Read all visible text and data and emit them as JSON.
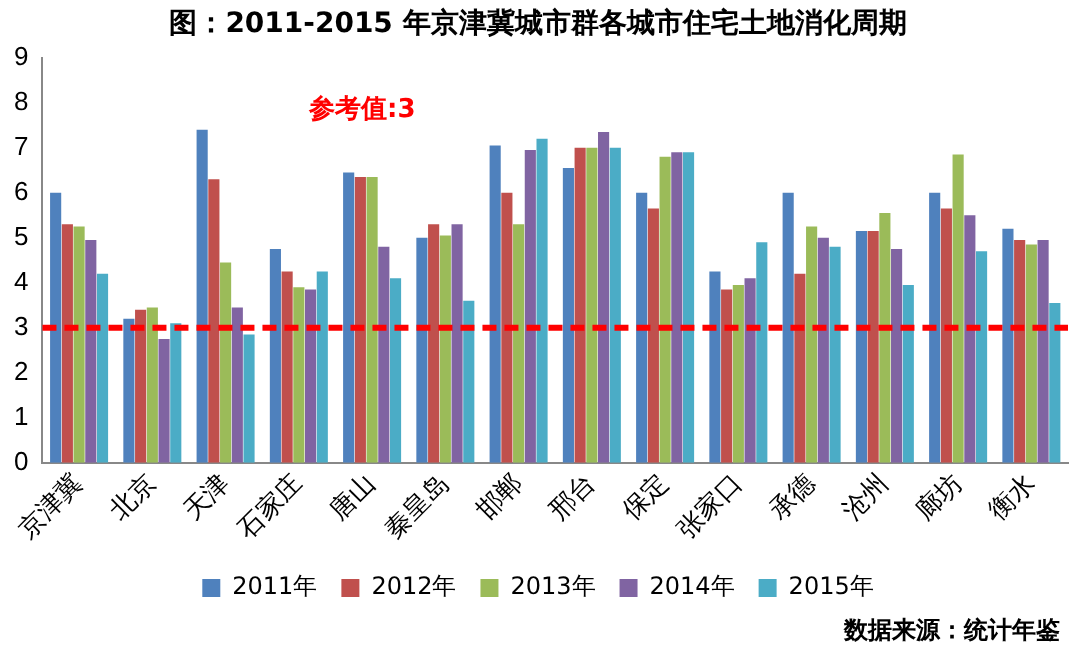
{
  "chart_data": {
    "type": "bar",
    "title": "图：2011-2015 年京津冀城市群各城市住宅土地消化周期",
    "categories": [
      "京津冀",
      "北京",
      "天津",
      "石家庄",
      "唐山",
      "秦皇岛",
      "邯郸",
      "邢台",
      "保定",
      "张家口",
      "承德",
      "沧州",
      "廊坊",
      "衡水"
    ],
    "series": [
      {
        "name": "2011年",
        "color": "#4f81bd",
        "values": [
          6.0,
          3.2,
          7.4,
          4.75,
          6.45,
          5.0,
          7.05,
          6.55,
          6.0,
          4.25,
          6.0,
          5.15,
          6.0,
          5.2
        ]
      },
      {
        "name": "2012年",
        "color": "#c0504d",
        "values": [
          5.3,
          3.4,
          6.3,
          4.25,
          6.35,
          5.3,
          6.0,
          7.0,
          5.65,
          3.85,
          4.2,
          5.15,
          5.65,
          4.95
        ]
      },
      {
        "name": "2013年",
        "color": "#9bbb59",
        "values": [
          5.25,
          3.45,
          4.45,
          3.9,
          6.35,
          5.05,
          5.3,
          7.0,
          6.8,
          3.95,
          5.25,
          5.55,
          6.85,
          4.85
        ]
      },
      {
        "name": "2014年",
        "color": "#8064a2",
        "values": [
          4.95,
          2.75,
          3.45,
          3.85,
          4.8,
          5.3,
          6.95,
          7.35,
          6.9,
          4.1,
          5.0,
          4.75,
          5.5,
          4.95
        ]
      },
      {
        "name": "2015年",
        "color": "#4bacc6",
        "values": [
          4.2,
          3.1,
          2.85,
          4.25,
          4.1,
          3.6,
          7.2,
          7.0,
          6.9,
          4.9,
          4.8,
          3.95,
          4.7,
          3.55
        ]
      }
    ],
    "ylim": [
      0,
      9
    ],
    "yticks": [
      0,
      1,
      2,
      3,
      4,
      5,
      6,
      7,
      8,
      9
    ],
    "grid": false,
    "legend": "bottom",
    "ref_lines": [
      {
        "axis": "y",
        "value": 3,
        "label": "参考值:3",
        "color": "#ff0000",
        "line_style": "dashed"
      }
    ],
    "annotations": [
      "数据来源：统计年鉴"
    ]
  }
}
